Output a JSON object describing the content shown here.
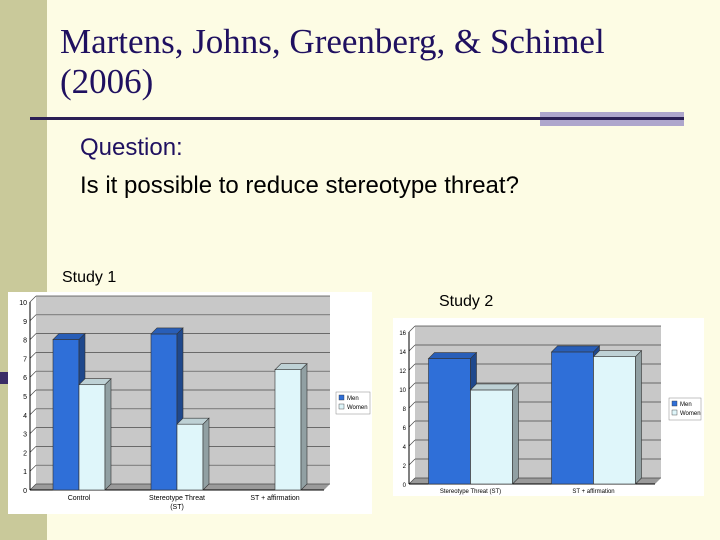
{
  "slide": {
    "title": "Martens, Johns, Greenberg, & Schimel (2006)",
    "question_label": "Question:",
    "question_text": "Is it possible to reduce stereotype threat?",
    "background_color": "#fdfce4",
    "accent_color": "#c9c99a"
  },
  "chart_data": [
    {
      "type": "bar",
      "label": "Study 1",
      "categories": [
        "Control",
        "Stereotype Threat (ST)",
        "ST + affirmation"
      ],
      "series": [
        {
          "name": "Men",
          "values": [
            8.0,
            8.3,
            null
          ],
          "color": "#2f6fd8"
        },
        {
          "name": "Women",
          "values": [
            5.6,
            3.5,
            6.4
          ],
          "color": "#dff6fa"
        }
      ],
      "ylim": [
        0,
        10
      ],
      "yticks": [
        0,
        1,
        2,
        3,
        4,
        5,
        6,
        7,
        8,
        9,
        10
      ],
      "grid": true,
      "legend": "right"
    },
    {
      "type": "bar",
      "label": "Study 2",
      "categories": [
        "Stereotype Threat (ST)",
        "ST + affirmation"
      ],
      "series": [
        {
          "name": "Men",
          "values": [
            13.2,
            13.9
          ],
          "color": "#2f6fd8"
        },
        {
          "name": "Women",
          "values": [
            9.9,
            13.4
          ],
          "color": "#dff6fa"
        }
      ],
      "ylim": [
        0,
        16
      ],
      "yticks": [
        0,
        2,
        4,
        6,
        8,
        10,
        12,
        14,
        16
      ],
      "grid": true,
      "legend": "right"
    }
  ]
}
